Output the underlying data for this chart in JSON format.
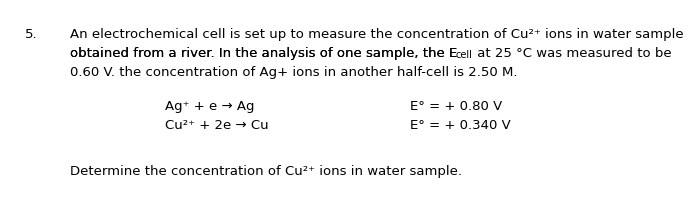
{
  "number": "5.",
  "bg_color": "#ffffff",
  "text_color": "#000000",
  "font_size": 9.5,
  "sub_font_size": 7.0,
  "line1": "An electrochemical cell is set up to measure the concentration of Cu²⁺ ions in water sample",
  "line2a": "obtained from a river. In the analysis of one sample, the E",
  "line2_sub": "cell",
  "line2b": " at 25 °C was measured to be",
  "line3": "0.60 V. the concentration of Ag+ ions in another half-cell is 2.50 M.",
  "eq1_left": "Ag⁺ + e → Ag",
  "eq1_right": "E° = + 0.80 V",
  "eq2_left": "Cu²⁺ + 2e → Cu",
  "eq2_right": "E° = + 0.340 V",
  "footer": "Determine the concentration of Cu²⁺ ions in water sample."
}
